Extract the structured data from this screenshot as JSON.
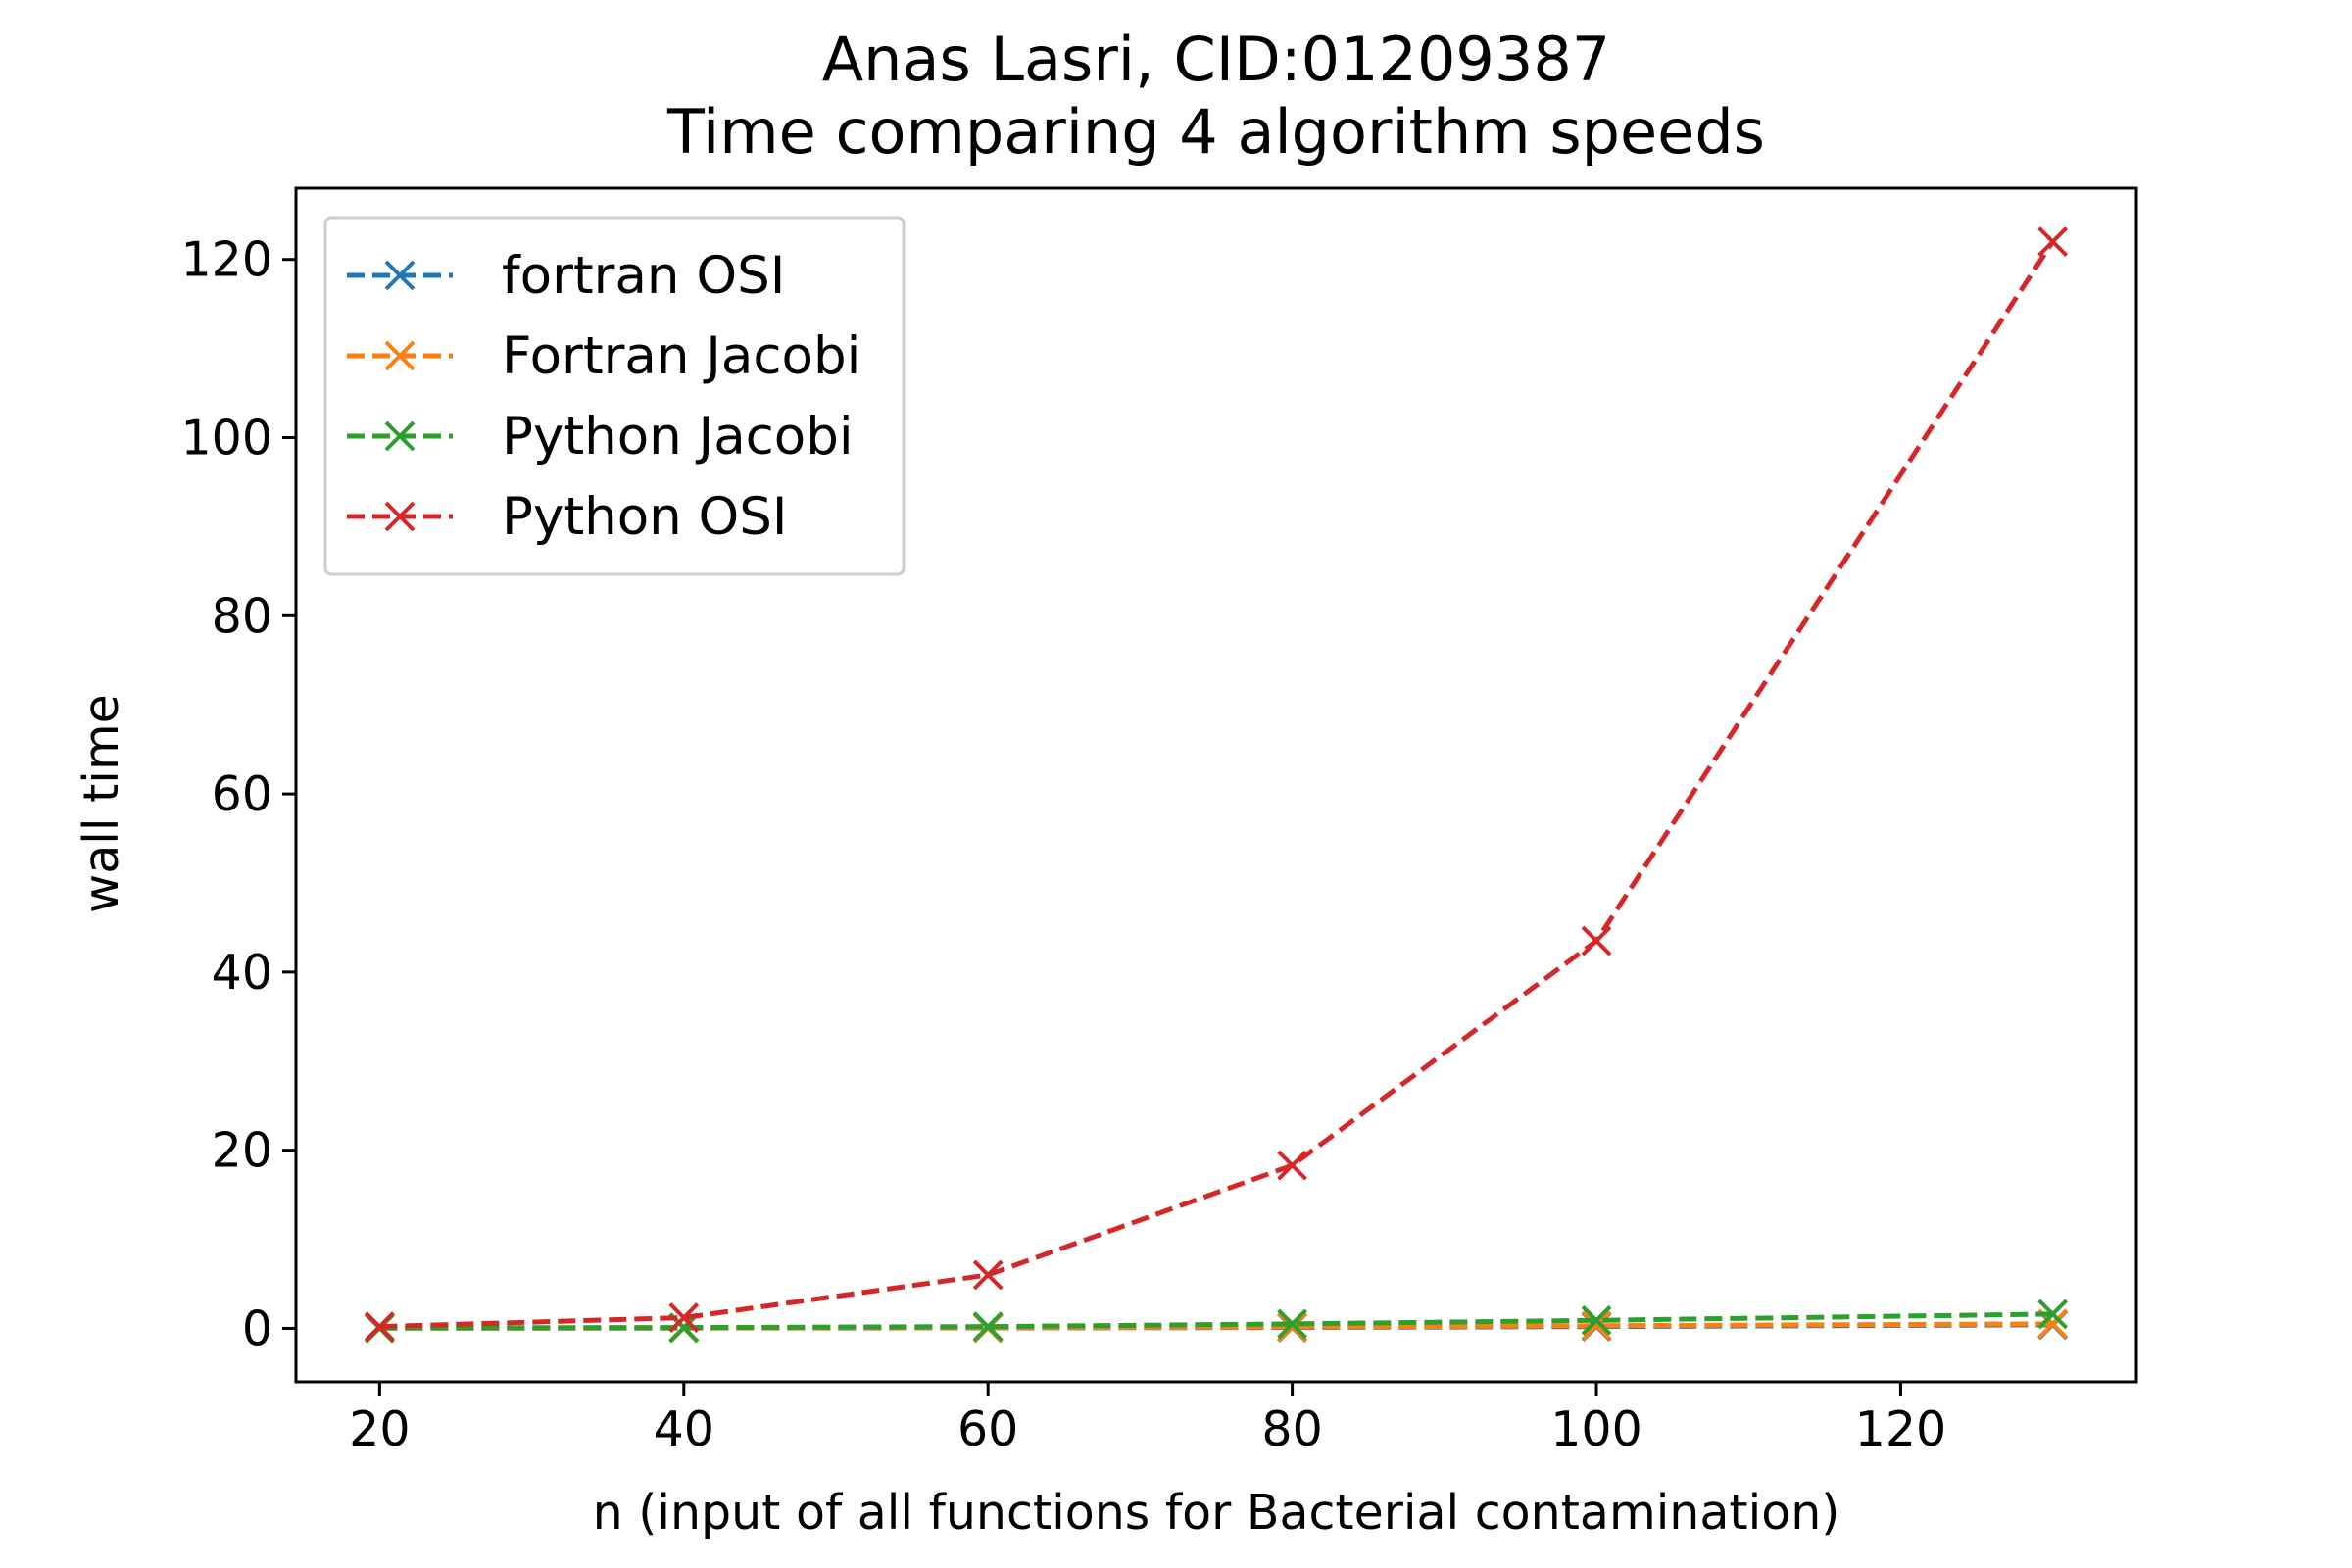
{
  "chart_data": {
    "type": "line",
    "title": "Anas Lasri, CID:01209387",
    "subtitle": "Time comparing 4 algorithm speeds",
    "xlabel": "n (input of all functions for Bacterial contamination)",
    "ylabel": "wall time",
    "x": [
      20,
      40,
      60,
      80,
      100,
      130
    ],
    "xlim": [
      14.5,
      135.5
    ],
    "ylim": [
      -6,
      128
    ],
    "xticks": [
      20,
      40,
      60,
      80,
      100,
      120
    ],
    "yticks": [
      0,
      20,
      40,
      60,
      80,
      100,
      120
    ],
    "grid": false,
    "legend_position": "upper-left",
    "series": [
      {
        "name": "fortran OSI",
        "color": "#1f77b4",
        "values": [
          0.02,
          0.03,
          0.05,
          0.1,
          0.2,
          0.4
        ]
      },
      {
        "name": "Fortran Jacobi",
        "color": "#ff7f0e",
        "values": [
          0.02,
          0.04,
          0.08,
          0.15,
          0.3,
          0.5
        ]
      },
      {
        "name": "Python Jacobi",
        "color": "#2ca02c",
        "values": [
          0.05,
          0.1,
          0.2,
          0.5,
          0.9,
          1.6
        ]
      },
      {
        "name": "Python OSI",
        "color": "#d62728",
        "values": [
          0.2,
          1.2,
          6.0,
          18.3,
          43.5,
          122.0
        ]
      }
    ]
  }
}
